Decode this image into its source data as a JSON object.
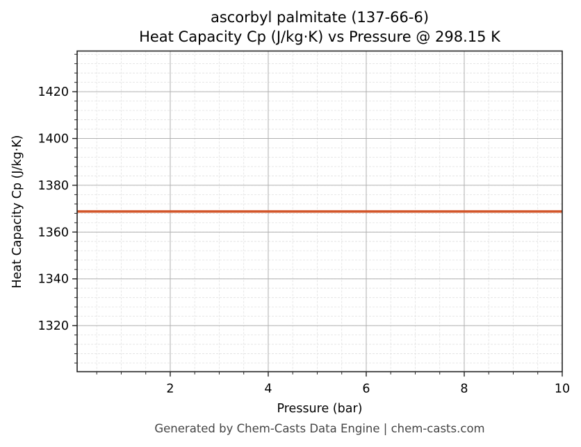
{
  "title": {
    "line1": "ascorbyl palmitate (137-66-6)",
    "line2": "Heat Capacity Cp (J/kg·K) vs Pressure @ 298.15 K"
  },
  "footer": "Generated by Chem-Casts Data Engine | chem-casts.com",
  "colors": {
    "series": "#d2562a",
    "major_grid": "#b0b0b0",
    "minor_grid": "#e0e0e0",
    "axis": "#222222"
  },
  "chart_data": {
    "type": "line",
    "title": "ascorbyl palmitate (137-66-6)\nHeat Capacity Cp (J/kg·K) vs Pressure @ 298.15 K",
    "xlabel": "Pressure (bar)",
    "ylabel": "Heat Capacity Cp (J/kg·K)",
    "xlim": [
      0.1,
      10
    ],
    "ylim": [
      1300.3,
      1437.4
    ],
    "x_ticks": [
      2,
      4,
      6,
      8,
      10
    ],
    "x_tick_labels": [
      "2",
      "4",
      "6",
      "8",
      "10"
    ],
    "y_ticks": [
      1320,
      1340,
      1360,
      1380,
      1400,
      1420
    ],
    "y_tick_labels": [
      "1320",
      "1340",
      "1360",
      "1380",
      "1400",
      "1420"
    ],
    "x_minor_step": 0.5,
    "y_minor_step": 4,
    "grid": true,
    "legend": null,
    "series": [
      {
        "name": "Cp",
        "color": "#d2562a",
        "x": [
          0.1,
          1,
          2,
          3,
          4,
          5,
          6,
          7,
          8,
          9,
          10
        ],
        "values": [
          1368.8,
          1368.8,
          1368.8,
          1368.8,
          1368.8,
          1368.8,
          1368.8,
          1368.8,
          1368.8,
          1368.8,
          1368.8
        ]
      }
    ]
  }
}
